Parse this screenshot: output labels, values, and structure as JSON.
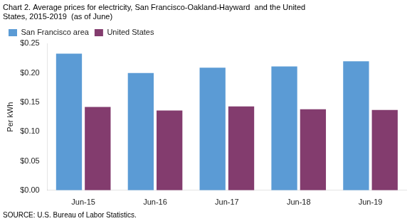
{
  "chart_data": {
    "type": "bar",
    "title": [
      "Chart 2. Average prices for electricity, San Francisco-Oakland-Hayward  and the United",
      "States, 2015-2019  (as of June)"
    ],
    "ylabel": "Per kWh",
    "source": "SOURCE: U.S. Bureau of Labor Statistics.",
    "categories": [
      "Jun-15",
      "Jun-16",
      "Jun-17",
      "Jun-18",
      "Jun-19"
    ],
    "series": [
      {
        "name": "San Francisco area",
        "color": "#5B9BD5",
        "values": [
          0.233,
          0.2,
          0.209,
          0.211,
          0.22
        ]
      },
      {
        "name": "United States",
        "color": "#833C6E",
        "values": [
          0.142,
          0.136,
          0.143,
          0.138,
          0.137
        ]
      }
    ],
    "ylim": [
      0,
      0.25
    ],
    "yticks": [
      {
        "value": 0.0,
        "label": "$0.00"
      },
      {
        "value": 0.05,
        "label": "$0.05"
      },
      {
        "value": 0.1,
        "label": "$0.10"
      },
      {
        "value": 0.15,
        "label": "$0.15"
      },
      {
        "value": 0.2,
        "label": "$0.20"
      },
      {
        "value": 0.25,
        "label": "$0.25"
      }
    ],
    "legend": "top-left",
    "grid": false
  }
}
